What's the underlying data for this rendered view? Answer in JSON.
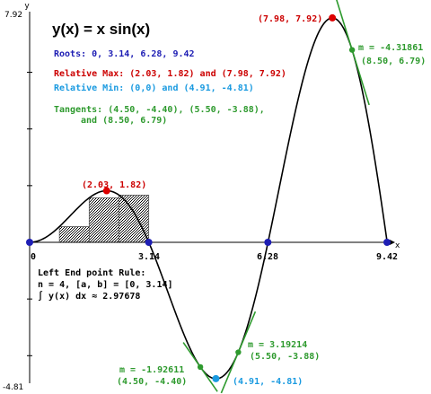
{
  "chart_data": {
    "type": "line",
    "title": "y(x) = x sin(x)",
    "function": "x sin(x)",
    "xlim": [
      0,
      9.42
    ],
    "ylim": [
      -4.81,
      7.92
    ],
    "x_axis_label": "x",
    "y_axis_label": "y",
    "y_max_label": "7.92",
    "y_min_label": "-4.81",
    "x_tick_labels": [
      {
        "value": 0,
        "label": "0"
      },
      {
        "value": 3.14,
        "label": "3.14"
      },
      {
        "value": 6.28,
        "label": "6.28"
      },
      {
        "value": 9.42,
        "label": "9.42"
      }
    ],
    "curve": {
      "x_start": 0,
      "x_end": 9.42,
      "samples": 240,
      "color": "#000000"
    },
    "roots": [
      [
        0,
        0
      ],
      [
        3.14,
        0
      ],
      [
        6.28,
        0
      ],
      [
        9.42,
        0
      ]
    ],
    "relative_max": [
      [
        2.03,
        1.82
      ],
      [
        7.98,
        7.92
      ]
    ],
    "relative_min": [
      [
        0,
        0
      ],
      [
        4.91,
        -4.81
      ]
    ],
    "highlight_points": [
      {
        "x": 2.03,
        "y": 1.82,
        "label": "(2.03, 1.82)",
        "color": "#dd0000"
      },
      {
        "x": 7.98,
        "y": 7.92,
        "label": "(7.98, 7.92)",
        "color": "#dd0000"
      },
      {
        "x": 4.91,
        "y": -4.81,
        "label": "(4.91, -4.81)",
        "color": "#1a9ae0"
      }
    ],
    "tangents": [
      {
        "x": 4.5,
        "y": -4.4,
        "slope": -1.92611,
        "m_label": "m = -1.92611",
        "point_label": "(4.50, -4.40)"
      },
      {
        "x": 5.5,
        "y": -3.88,
        "slope": 3.19214,
        "m_label": "m = 3.19214",
        "point_label": "(5.50, -3.88)"
      },
      {
        "x": 8.5,
        "y": 6.79,
        "slope": -4.31861,
        "m_label": "m = -4.31861",
        "point_label": "(8.50, 6.79)"
      }
    ],
    "riemann": {
      "rule": "Left End point Rule:",
      "n": 4,
      "a": 0,
      "b": 3.14,
      "n_text": "n = 4, [a, b] = [0, 3.14]",
      "integral_text": "∫ y(x) dx ≈ 2.97678",
      "rect_heights": [
        0,
        0.5544,
        1.5708,
        1.6661
      ]
    },
    "info": {
      "roots_text": "Roots: 0, 3.14, 6.28, 9.42",
      "max_text": "Relative Max: (2.03, 1.82) and (7.98, 7.92)",
      "min_text": "Relative Min: (0,0) and (4.91, -4.81)",
      "tangents_line1": "Tangents: (4.50, -4.40), (5.50, -3.88),",
      "tangents_line2": "and (8.50, 6.79)"
    },
    "colors": {
      "roots": "#1e1eb4",
      "max": "#cc0000",
      "min": "#1a9ae0",
      "tangent": "#2e9a2e",
      "text_black": "#000000"
    }
  }
}
